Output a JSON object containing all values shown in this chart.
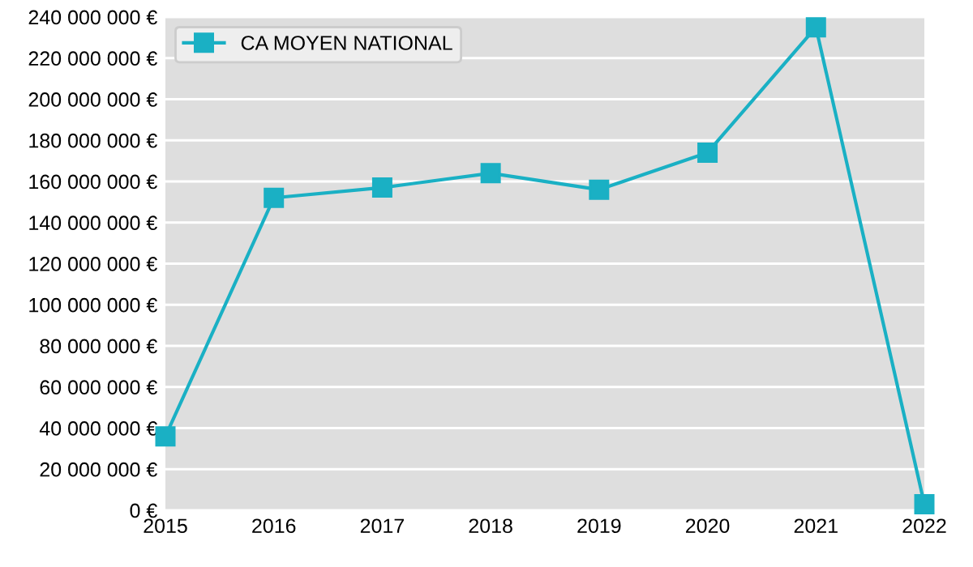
{
  "chart_data": {
    "type": "line",
    "x": [
      2015,
      2016,
      2017,
      2018,
      2019,
      2020,
      2021,
      2022
    ],
    "series": [
      {
        "name": "CA MOYEN NATIONAL",
        "color": "#1ab0c4",
        "values": [
          36000000,
          152000000,
          157000000,
          164000000,
          156000000,
          174000000,
          235000000,
          3000000
        ]
      }
    ],
    "xlim": [
      2015,
      2022
    ],
    "xticks": [
      2015,
      2016,
      2017,
      2018,
      2019,
      2020,
      2021,
      2022
    ],
    "ylim": [
      0,
      240000000
    ],
    "yticks": [
      {
        "value": 0,
        "label": "0 €"
      },
      {
        "value": 20000000,
        "label": "20 000 000 €"
      },
      {
        "value": 40000000,
        "label": "40 000 000 €"
      },
      {
        "value": 60000000,
        "label": "60 000 000 €"
      },
      {
        "value": 80000000,
        "label": "80 000 000 €"
      },
      {
        "value": 100000000,
        "label": "100 000 000 €"
      },
      {
        "value": 120000000,
        "label": "120 000 000 €"
      },
      {
        "value": 140000000,
        "label": "140 000 000 €"
      },
      {
        "value": 160000000,
        "label": "160 000 000 €"
      },
      {
        "value": 180000000,
        "label": "180 000 000 €"
      },
      {
        "value": 200000000,
        "label": "200 000 000 €"
      },
      {
        "value": 220000000,
        "label": "220 000 000 €"
      },
      {
        "value": 240000000,
        "label": "240 000 000 €"
      }
    ],
    "grid": "y",
    "legend": "top left",
    "marker": "square",
    "line_style": "solid"
  }
}
